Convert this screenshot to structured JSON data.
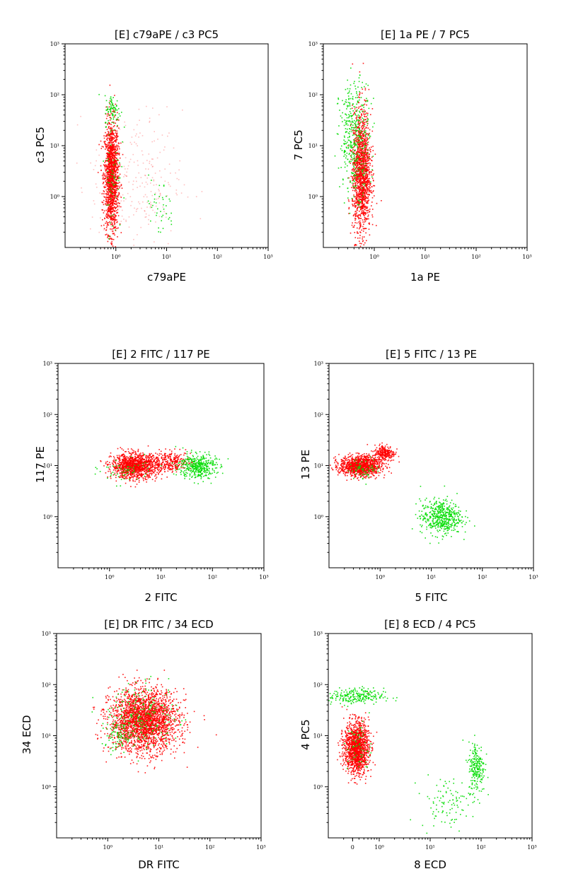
{
  "colors": {
    "population_1": "#ff0000",
    "population_2": "#00dd00",
    "axis": "#000000"
  },
  "chart_data": [
    {
      "type": "scatter",
      "title": "[E] c79aPE / c3 PC5",
      "xlabel": "c79aPE",
      "ylabel": "c3 PC5",
      "x_scale": "log",
      "y_scale": "log",
      "xlim": [
        0.1,
        1000
      ],
      "ylim": [
        0.1,
        1000
      ],
      "xticks": [
        "10⁰",
        "10¹",
        "10²",
        "10³"
      ],
      "yticks": [
        "10⁰",
        "10¹",
        "10²",
        "10³"
      ],
      "series": [
        {
          "color": "#ff0000",
          "clusters": [
            {
              "x": 0.8,
              "y": 2.5,
              "sx": 0.07,
              "sy": 0.55,
              "n": 1500
            },
            {
              "x": 2.5,
              "y": 2,
              "sx": 0.45,
              "sy": 0.7,
              "n": 250,
              "sparse": true
            }
          ]
        },
        {
          "color": "#00dd00",
          "clusters": [
            {
              "x": 0.85,
              "y": 50,
              "sx": 0.08,
              "sy": 0.15,
              "n": 80
            },
            {
              "x": 0.85,
              "y": 3,
              "sx": 0.08,
              "sy": 0.6,
              "n": 60
            },
            {
              "x": 7,
              "y": 0.6,
              "sx": 0.15,
              "sy": 0.3,
              "n": 40
            }
          ]
        }
      ]
    },
    {
      "type": "scatter",
      "title": "[E] 1a PE / 7 PC5",
      "xlabel": "1a PE",
      "ylabel": "7 PC5",
      "x_scale": "log",
      "y_scale": "log",
      "xlim": [
        0.1,
        1000
      ],
      "ylim": [
        0.1,
        1000
      ],
      "xticks": [
        "10⁰",
        "10¹",
        "10²",
        "10³"
      ],
      "yticks": [
        "10⁰",
        "10¹",
        "10²",
        "10³"
      ],
      "series": [
        {
          "color": "#ff0000",
          "clusters": [
            {
              "x": 0.55,
              "y": 3,
              "sx": 0.09,
              "sy": 0.6,
              "n": 1500
            }
          ]
        },
        {
          "color": "#00dd00",
          "clusters": [
            {
              "x": 0.4,
              "y": 15,
              "sx": 0.15,
              "sy": 0.55,
              "n": 400
            }
          ]
        }
      ]
    },
    {
      "type": "scatter",
      "title": "[E] 2 FITC  / 117 PE",
      "xlabel": "2 FITC",
      "ylabel": "117 PE",
      "x_scale": "log",
      "y_scale": "log",
      "xlim": [
        0.1,
        1000
      ],
      "ylim": [
        0.1,
        1000
      ],
      "xticks": [
        "10⁰",
        "10¹",
        "10²",
        "10³"
      ],
      "yticks": [
        "10⁰",
        "10¹",
        "10²",
        "10³"
      ],
      "series": [
        {
          "color": "#ff0000",
          "clusters": [
            {
              "x": 3,
              "y": 10,
              "sx": 0.22,
              "sy": 0.12,
              "n": 1200
            },
            {
              "x": 15,
              "y": 12,
              "sx": 0.2,
              "sy": 0.1,
              "n": 300
            }
          ]
        },
        {
          "color": "#00dd00",
          "clusters": [
            {
              "x": 50,
              "y": 10,
              "sx": 0.18,
              "sy": 0.12,
              "n": 400
            },
            {
              "x": 2,
              "y": 8,
              "sx": 0.25,
              "sy": 0.12,
              "n": 60
            }
          ]
        }
      ]
    },
    {
      "type": "scatter",
      "title": "[E] 5 FITC  / 13 PE",
      "xlabel": "5 FITC",
      "ylabel": "13 PE",
      "x_scale": "log",
      "y_scale": "log",
      "xlim": [
        0.1,
        1000
      ],
      "ylim": [
        0.1,
        1000
      ],
      "xticks": [
        "10⁰",
        "10¹",
        "10²",
        "10³"
      ],
      "yticks": [
        "10⁰",
        "10¹",
        "10²",
        "10³"
      ],
      "series": [
        {
          "color": "#ff0000",
          "clusters": [
            {
              "x": 0.4,
              "y": 10,
              "sx": 0.2,
              "sy": 0.1,
              "n": 1100
            },
            {
              "x": 1.2,
              "y": 18,
              "sx": 0.1,
              "sy": 0.08,
              "n": 250
            }
          ]
        },
        {
          "color": "#00dd00",
          "clusters": [
            {
              "x": 15,
              "y": 1,
              "sx": 0.2,
              "sy": 0.17,
              "n": 500
            },
            {
              "x": 0.5,
              "y": 9,
              "sx": 0.15,
              "sy": 0.1,
              "n": 60
            }
          ]
        }
      ]
    },
    {
      "type": "scatter",
      "title": "[E] DR FITC  / 34  ECD",
      "xlabel": "DR FITC",
      "ylabel": "34  ECD",
      "x_scale": "log",
      "y_scale": "log",
      "xlim": [
        0.1,
        1000
      ],
      "ylim": [
        0.1,
        1000
      ],
      "xticks": [
        "10⁰",
        "10¹",
        "10²",
        "10³"
      ],
      "yticks": [
        "10⁰",
        "10¹",
        "10²",
        "10³"
      ],
      "series": [
        {
          "color": "#ff0000",
          "clusters": [
            {
              "x": 5,
              "y": 20,
              "sx": 0.33,
              "sy": 0.3,
              "n": 2500
            }
          ]
        },
        {
          "color": "#00dd00",
          "clusters": [
            {
              "x": 5,
              "y": 25,
              "sx": 0.33,
              "sy": 0.3,
              "n": 220
            },
            {
              "x": 1.5,
              "y": 10,
              "sx": 0.15,
              "sy": 0.15,
              "n": 80
            }
          ]
        }
      ]
    },
    {
      "type": "scatter",
      "title": "[E] 8 ECD / 4 PC5",
      "xlabel": "8 ECD",
      "ylabel": "4 PC5",
      "x_scale": "log",
      "y_scale": "log",
      "xlim": [
        0.1,
        1000
      ],
      "ylim": [
        0.1,
        1000
      ],
      "xticks": [
        "0",
        "10⁰",
        "10¹",
        "10²",
        "10³"
      ],
      "yticks": [
        "10⁰",
        "10¹",
        "10²",
        "10³"
      ],
      "series": [
        {
          "color": "#ff0000",
          "clusters": [
            {
              "x": 0.35,
              "y": 6,
              "sx": 0.12,
              "sy": 0.25,
              "n": 1400
            }
          ]
        },
        {
          "color": "#00dd00",
          "clusters": [
            {
              "x": 0.3,
              "y": 60,
              "sx": 0.3,
              "sy": 0.08,
              "n": 250
            },
            {
              "x": 80,
              "y": 2.5,
              "sx": 0.08,
              "sy": 0.25,
              "n": 220
            },
            {
              "x": 20,
              "y": 0.5,
              "sx": 0.25,
              "sy": 0.25,
              "n": 100
            },
            {
              "x": 0.4,
              "y": 6,
              "sx": 0.12,
              "sy": 0.25,
              "n": 60
            }
          ]
        }
      ]
    }
  ]
}
